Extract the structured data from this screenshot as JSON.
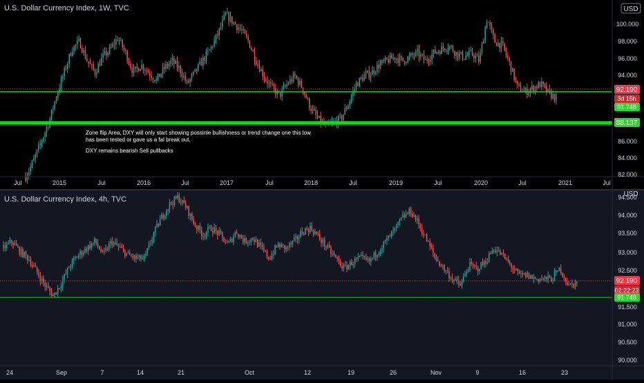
{
  "colors": {
    "top_bg": "#000000",
    "bottom_bg": "#131722",
    "up": "#26a69a",
    "down": "#ef5350",
    "level": "#00e600",
    "axis_text": "#d1d4dc",
    "price_tag": "#f23645",
    "level_tag": "#2bd82b"
  },
  "top_chart": {
    "title": "U.S. Dollar Currency Index, 1W, TVC",
    "currency": "USD",
    "y_ticks": [
      "100.000",
      "98.000",
      "96.000",
      "94.000",
      "86.000",
      "84.000",
      "82.000"
    ],
    "y_tick_values": [
      100,
      98,
      96,
      94,
      86,
      84,
      82
    ],
    "x_ticks": [
      "Jul",
      "2015",
      "Jul",
      "2016",
      "Jul",
      "2017",
      "Jul",
      "2018",
      "Jul",
      "2019",
      "Jul",
      "2020",
      "Jul",
      "2021",
      "Jul"
    ],
    "current_price": "92.190",
    "countdown": "3d 15h",
    "level_label_1": "91.748",
    "level_label_2": "88.137",
    "annotation_line1": "Zone flip Area, DXY will only start showing possinle bullishness or trend change one this low",
    "annotation_line2": "has been tested or gave us a fal break out.",
    "annotation_line3": "DXY remains bearish Sell pullbacks"
  },
  "bottom_chart": {
    "title": "U.S. Dollar Currency Index, 4h, TVC",
    "currency": "USD",
    "y_ticks": [
      "94.500",
      "94.000",
      "93.500",
      "93.000",
      "92.500",
      "91.500",
      "91.000",
      "90.500",
      "90.000"
    ],
    "y_tick_values": [
      94.5,
      94.0,
      93.5,
      93.0,
      92.5,
      91.5,
      91.0,
      90.5,
      90.0
    ],
    "x_ticks": [
      "24",
      "Sep",
      "7",
      "14",
      "21",
      "Oct",
      "12",
      "19",
      "26",
      "Nov",
      "9",
      "16",
      "23"
    ],
    "current_price": "92.190",
    "countdown": "02:22:23",
    "level_label": "91.748"
  },
  "chart_data": [
    {
      "type": "candlestick",
      "title": "U.S. Dollar Currency Index, 1W, TVC",
      "ylim": [
        82,
        104
      ],
      "x": [
        "2014-07",
        "2015-01",
        "2015-07",
        "2016-01",
        "2016-07",
        "2017-01",
        "2017-07",
        "2018-01",
        "2018-07",
        "2019-01",
        "2019-07",
        "2020-01",
        "2020-07",
        "2021-01",
        "2021-07"
      ],
      "path_values": [
        82.0,
        84.0,
        86.5,
        89.0,
        92.5,
        95.5,
        98.5,
        99.5,
        97.0,
        95.5,
        97.5,
        98.5,
        100.0,
        98.0,
        95.5,
        96.5,
        95.5,
        94.5,
        96.0,
        97.0,
        96.0,
        94.0,
        95.5,
        97.0,
        98.5,
        100.5,
        103.0,
        102.0,
        101.0,
        99.5,
        97.0,
        95.0,
        93.5,
        92.5,
        94.0,
        95.0,
        93.5,
        91.0,
        89.5,
        88.5,
        89.0,
        89.5,
        91.5,
        94.0,
        95.0,
        95.5,
        96.5,
        97.0,
        97.5,
        97.0,
        97.5,
        98.0,
        97.0,
        98.0,
        98.5,
        99.0,
        98.0,
        97.5,
        98.0,
        97.0,
        102.5,
        99.5,
        99.0,
        96.5,
        93.5,
        93.0,
        93.5,
        94.0,
        92.8,
        92.19
      ],
      "levels": [
        91.748,
        88.137
      ]
    },
    {
      "type": "candlestick",
      "title": "U.S. Dollar Currency Index, 4h, TVC",
      "ylim": [
        89.9,
        94.7
      ],
      "x": [
        "24",
        "Sep",
        "7",
        "14",
        "21",
        "Oct",
        "12",
        "19",
        "26",
        "Nov",
        "9",
        "16",
        "23"
      ],
      "path_values": [
        93.2,
        93.4,
        93.1,
        92.9,
        92.5,
        92.1,
        91.8,
        92.2,
        92.7,
        93.0,
        93.2,
        93.4,
        93.0,
        93.4,
        93.2,
        93.0,
        92.9,
        92.9,
        93.6,
        94.1,
        94.5,
        94.7,
        94.4,
        93.9,
        93.6,
        93.8,
        93.6,
        93.3,
        93.7,
        93.4,
        93.5,
        93.2,
        92.9,
        93.3,
        93.2,
        93.4,
        93.7,
        93.8,
        93.5,
        93.2,
        92.9,
        92.6,
        92.8,
        92.9,
        92.8,
        93.1,
        93.4,
        93.7,
        94.1,
        94.3,
        93.9,
        93.4,
        92.9,
        92.6,
        92.3,
        92.1,
        92.7,
        92.6,
        92.8,
        93.2,
        93.0,
        92.7,
        92.4,
        92.4,
        92.3,
        92.3,
        92.3,
        92.6,
        92.1,
        92.19
      ],
      "levels": [
        91.748
      ]
    }
  ]
}
